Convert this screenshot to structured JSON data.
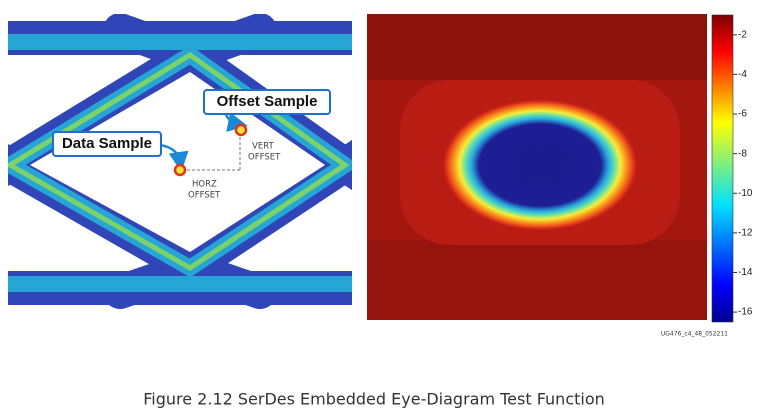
{
  "left_image": {
    "callouts": {
      "offset_sample": "Offset Sample",
      "data_sample": "Data Sample"
    },
    "vert_offset": [
      "VERT",
      "OFFSET"
    ],
    "horz_offset": [
      "HORZ",
      "OFFSET"
    ]
  },
  "right_image": {
    "colorbar": {
      "range": [
        -16.5,
        -1
      ],
      "ticks": [
        -2,
        -4,
        -6,
        -8,
        -10,
        -12,
        -14,
        -16
      ]
    },
    "figure_id": "UG476_c4_48_052211"
  },
  "caption": "Figure 2.12 SerDes Embedded Eye-Diagram Test Function"
}
